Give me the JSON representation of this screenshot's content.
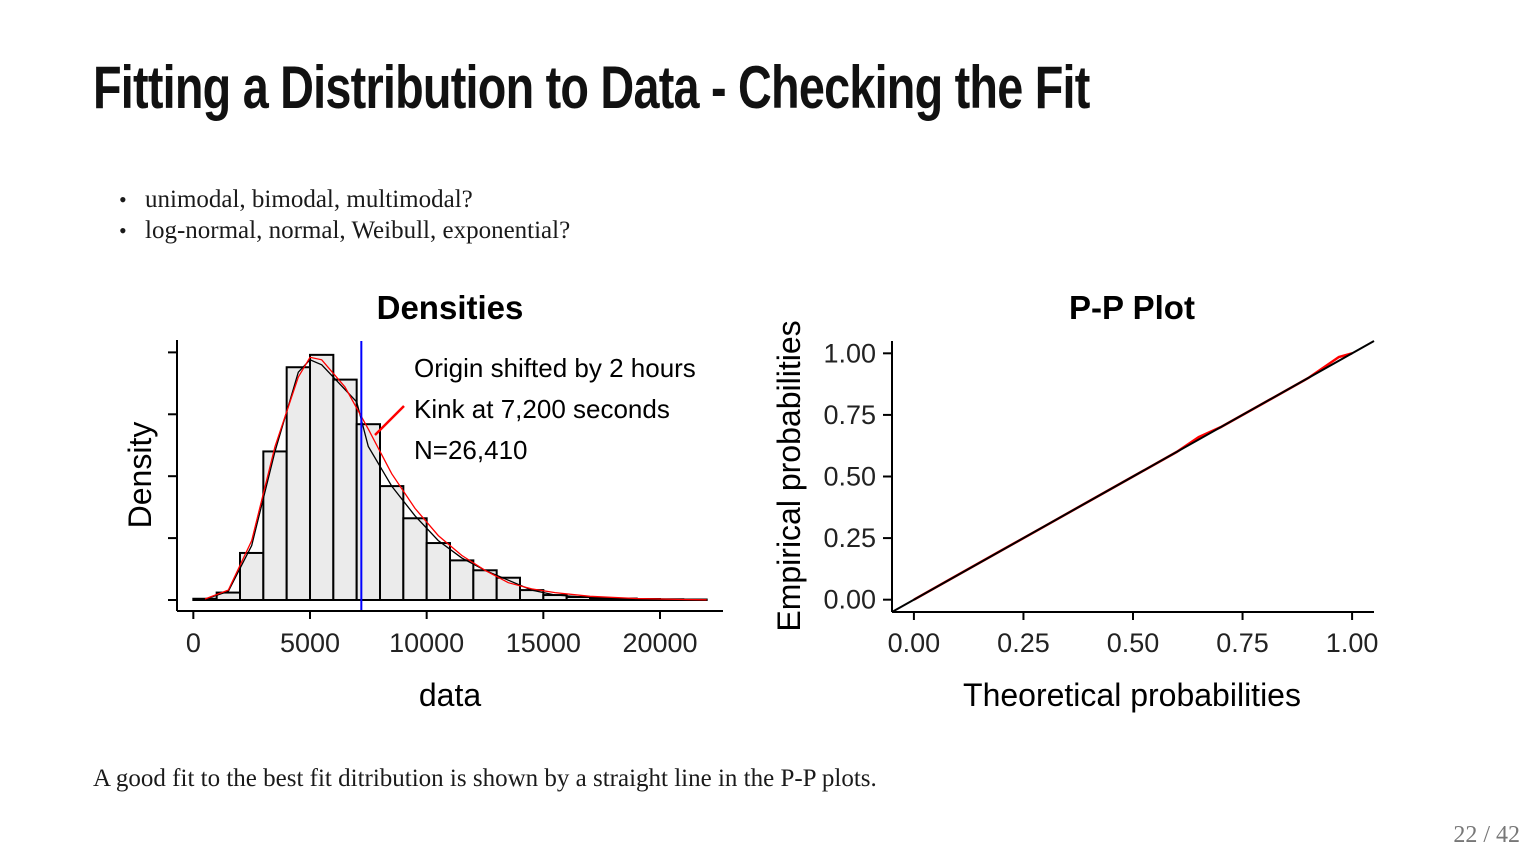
{
  "slide": {
    "title": "Fitting a Distribution to Data - Checking the Fit",
    "bullets": [
      "unimodal, bimodal, multimodal?",
      "log-normal, normal, Weibull, exponential?"
    ],
    "caption": "A good fit to the best fit ditribution is shown by a straight line in the P-P plots.",
    "page_number": "22 / 42"
  },
  "chart_data": [
    {
      "type": "bar",
      "title": "Densities",
      "xlabel": "data",
      "ylabel": "Density",
      "xlim": [
        -700,
        22700
      ],
      "ylim": [
        0,
        1.05
      ],
      "x_ticks": [
        0,
        5000,
        10000,
        15000,
        20000
      ],
      "x_tick_labels": [
        "0",
        "5000",
        "10000",
        "15000",
        "20000"
      ],
      "bin_width": 1000,
      "bin_starts": [
        0,
        1000,
        2000,
        3000,
        4000,
        5000,
        6000,
        7000,
        8000,
        9000,
        10000,
        11000,
        12000,
        13000,
        14000,
        15000,
        16000,
        17000,
        18000,
        19000,
        20000,
        21000
      ],
      "values": [
        0.005,
        0.03,
        0.19,
        0.6,
        0.94,
        0.99,
        0.89,
        0.71,
        0.46,
        0.33,
        0.23,
        0.16,
        0.12,
        0.09,
        0.04,
        0.02,
        0.012,
        0.008,
        0.006,
        0.004,
        0.003,
        0.002
      ],
      "kink_line_x": 7200,
      "series": [
        {
          "name": "",
          "color": "#ff0000",
          "x": [
            500,
            1500,
            2500,
            3500,
            4500,
            5000,
            5500,
            6500,
            7500,
            8500,
            9500,
            10500,
            11500,
            12500,
            13500,
            14500,
            15500,
            17000,
            19000,
            21000,
            22000
          ],
          "y": [
            0.004,
            0.04,
            0.24,
            0.62,
            0.9,
            0.98,
            0.97,
            0.86,
            0.69,
            0.51,
            0.37,
            0.26,
            0.18,
            0.12,
            0.07,
            0.045,
            0.03,
            0.015,
            0.006,
            0.002,
            0.001
          ]
        },
        {
          "name": "",
          "color": "#000000",
          "x": [
            500,
            1500,
            2500,
            3500,
            4500,
            5000,
            5500,
            6500,
            7000,
            7500,
            8500,
            9500,
            10500,
            11500,
            12500,
            13500,
            14500,
            15500,
            17000,
            19000,
            21000,
            22000
          ],
          "y": [
            0.003,
            0.035,
            0.22,
            0.6,
            0.92,
            0.97,
            0.95,
            0.85,
            0.8,
            0.62,
            0.46,
            0.34,
            0.24,
            0.17,
            0.12,
            0.08,
            0.04,
            0.02,
            0.01,
            0.004,
            0.002,
            0.001
          ]
        }
      ],
      "annotations": [
        "Origin shifted by 2 hours",
        "Kink at 7,200 seconds",
        "N=26,410"
      ]
    },
    {
      "type": "line",
      "title": "P-P Plot",
      "xlabel": "Theoretical probabilities",
      "ylabel": "Empirical probabilities",
      "xlim": [
        -0.05,
        1.05
      ],
      "ylim": [
        -0.05,
        1.05
      ],
      "ticks": [
        0,
        0.25,
        0.5,
        0.75,
        1.0
      ],
      "tick_labels": [
        "0.00",
        "0.25",
        "0.50",
        "0.75",
        "1.00"
      ],
      "series": [
        {
          "name": "",
          "color": "#ff0000",
          "x": [
            0,
            0.1,
            0.2,
            0.3,
            0.4,
            0.5,
            0.6,
            0.65,
            0.7,
            0.8,
            0.9,
            0.97,
            1.0
          ],
          "y": [
            0,
            0.1,
            0.2,
            0.3,
            0.4,
            0.5,
            0.6,
            0.66,
            0.7,
            0.8,
            0.9,
            0.985,
            1.0
          ]
        }
      ],
      "reference_line": {
        "color": "#000000",
        "x": [
          -0.05,
          1.05
        ],
        "y": [
          -0.05,
          1.05
        ]
      }
    }
  ]
}
